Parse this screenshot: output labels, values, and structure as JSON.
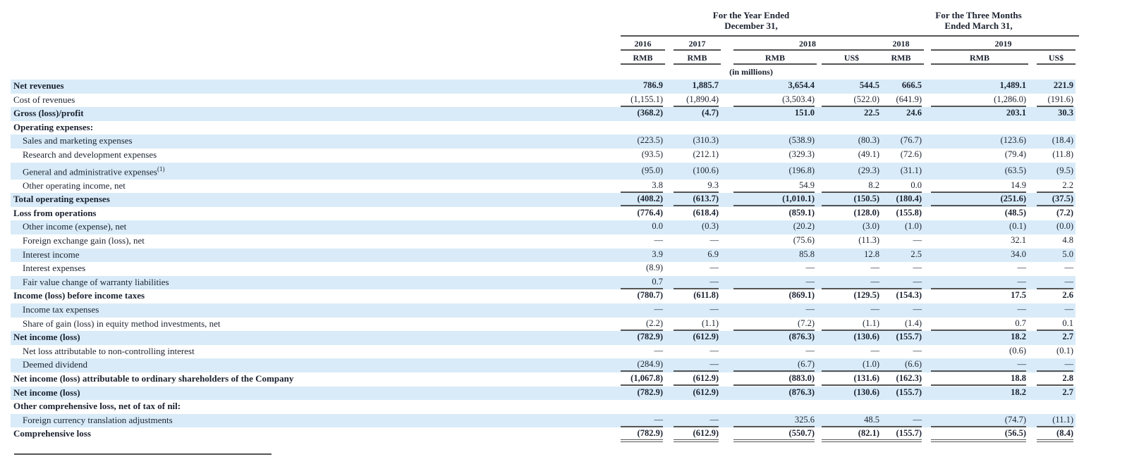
{
  "header": {
    "group1": [
      "For the Year Ended",
      "December 31,"
    ],
    "group2": [
      "For the Three Months",
      "Ended March 31,"
    ],
    "years": [
      "2016",
      "2017",
      "2018",
      "2018",
      "2019"
    ],
    "currencies": [
      "RMB",
      "RMB",
      "RMB",
      "US$",
      "RMB",
      "RMB",
      "US$"
    ],
    "units": "(in millions)"
  },
  "rows": [
    {
      "label": "Net revenues",
      "bold": true,
      "indent": false,
      "shade": true,
      "rule": "",
      "values": [
        "786.9",
        "1,885.7",
        "3,654.4",
        "544.5",
        "666.5",
        "1,489.1",
        "221.9"
      ]
    },
    {
      "label": "Cost of revenues",
      "bold": false,
      "indent": false,
      "shade": false,
      "rule": "single",
      "values": [
        "(1,155.1)",
        "(1,890.4)",
        "(3,503.4)",
        "(522.0)",
        "(641.9)",
        "(1,286.0)",
        "(191.6)"
      ]
    },
    {
      "label": "Gross (loss)/profit",
      "bold": true,
      "indent": false,
      "shade": true,
      "rule": "",
      "values": [
        "(368.2)",
        "(4.7)",
        "151.0",
        "22.5",
        "24.6",
        "203.1",
        "30.3"
      ]
    },
    {
      "label": "Operating expenses:",
      "bold": true,
      "indent": false,
      "shade": false,
      "rule": "",
      "values": [
        "",
        "",
        "",
        "",
        "",
        "",
        ""
      ]
    },
    {
      "label": "Sales and marketing expenses",
      "bold": false,
      "indent": true,
      "shade": true,
      "rule": "",
      "values": [
        "(223.5)",
        "(310.3)",
        "(538.9)",
        "(80.3)",
        "(76.7)",
        "(123.6)",
        "(18.4)"
      ]
    },
    {
      "label": "Research and development expenses",
      "bold": false,
      "indent": true,
      "shade": false,
      "rule": "",
      "values": [
        "(93.5)",
        "(212.1)",
        "(329.3)",
        "(49.1)",
        "(72.6)",
        "(79.4)",
        "(11.8)"
      ]
    },
    {
      "label": "General and administrative expenses",
      "sup": "(1)",
      "bold": false,
      "indent": true,
      "shade": true,
      "tall": true,
      "rule": "",
      "values": [
        "(95.0)",
        "(100.6)",
        "(196.8)",
        "(29.3)",
        "(31.1)",
        "(63.5)",
        "(9.5)"
      ]
    },
    {
      "label": "Other operating income, net",
      "bold": false,
      "indent": true,
      "shade": false,
      "rule": "single",
      "values": [
        "3.8",
        "9.3",
        "54.9",
        "8.2",
        "0.0",
        "14.9",
        "2.2"
      ]
    },
    {
      "label": "Total operating expenses",
      "bold": true,
      "indent": false,
      "shade": true,
      "rule": "single",
      "values": [
        "(408.2)",
        "(613.7)",
        "(1,010.1)",
        "(150.5)",
        "(180.4)",
        "(251.6)",
        "(37.5)"
      ]
    },
    {
      "label": "Loss from operations",
      "bold": true,
      "indent": false,
      "shade": false,
      "rule": "",
      "values": [
        "(776.4)",
        "(618.4)",
        "(859.1)",
        "(128.0)",
        "(155.8)",
        "(48.5)",
        "(7.2)"
      ]
    },
    {
      "label": "Other income (expense), net",
      "bold": false,
      "indent": true,
      "shade": true,
      "rule": "",
      "values": [
        "0.0",
        "(0.3)",
        "(20.2)",
        "(3.0)",
        "(1.0)",
        "(0.1)",
        "(0.0)"
      ]
    },
    {
      "label": "Foreign exchange gain (loss), net",
      "bold": false,
      "indent": true,
      "shade": false,
      "rule": "",
      "values": [
        "—",
        "—",
        "(75.6)",
        "(11.3)",
        "—",
        "32.1",
        "4.8"
      ]
    },
    {
      "label": "Interest income",
      "bold": false,
      "indent": true,
      "shade": true,
      "rule": "",
      "values": [
        "3.9",
        "6.9",
        "85.8",
        "12.8",
        "2.5",
        "34.0",
        "5.0"
      ]
    },
    {
      "label": "Interest expenses",
      "bold": false,
      "indent": true,
      "shade": false,
      "rule": "",
      "values": [
        "(8.9)",
        "—",
        "—",
        "—",
        "—",
        "—",
        "—"
      ]
    },
    {
      "label": "Fair value change of warranty liabilities",
      "bold": false,
      "indent": true,
      "shade": true,
      "rule": "single",
      "values": [
        "0.7",
        "—",
        "—",
        "—",
        "—",
        "—",
        "—"
      ]
    },
    {
      "label": "Income (loss) before income taxes",
      "bold": true,
      "indent": false,
      "shade": false,
      "rule": "",
      "values": [
        "(780.7)",
        "(611.8)",
        "(869.1)",
        "(129.5)",
        "(154.3)",
        "17.5",
        "2.6"
      ]
    },
    {
      "label": "Income tax expenses",
      "bold": false,
      "indent": true,
      "shade": true,
      "rule": "",
      "values": [
        "—",
        "—",
        "—",
        "—",
        "—",
        "—",
        "—"
      ]
    },
    {
      "label": "Share of gain (loss) in equity method investments, net",
      "bold": false,
      "indent": true,
      "shade": false,
      "rule": "single",
      "values": [
        "(2.2)",
        "(1.1)",
        "(7.2)",
        "(1.1)",
        "(1.4)",
        "0.7",
        "0.1"
      ]
    },
    {
      "label": "Net income (loss)",
      "bold": true,
      "indent": false,
      "shade": true,
      "rule": "",
      "values": [
        "(782.9)",
        "(612.9)",
        "(876.3)",
        "(130.6)",
        "(155.7)",
        "18.2",
        "2.7"
      ]
    },
    {
      "label": "Net loss attributable to non-controlling interest",
      "bold": false,
      "indent": true,
      "shade": false,
      "rule": "",
      "values": [
        "—",
        "—",
        "—",
        "—",
        "—",
        "(0.6)",
        "(0.1)"
      ]
    },
    {
      "label": "Deemed dividend",
      "bold": false,
      "indent": true,
      "shade": true,
      "rule": "single",
      "values": [
        "(284.9)",
        "—",
        "(6.7)",
        "(1.0)",
        "(6.6)",
        "—",
        "—"
      ]
    },
    {
      "label": "Net income (loss) attributable to ordinary shareholders of the Company",
      "bold": true,
      "indent": false,
      "shade": false,
      "rule": "single",
      "values": [
        "(1,067.8)",
        "(612.9)",
        "(883.0)",
        "(131.6)",
        "(162.3)",
        "18.8",
        "2.8"
      ]
    },
    {
      "label": "Net income (loss)",
      "bold": true,
      "indent": false,
      "shade": true,
      "rule": "",
      "values": [
        "(782.9)",
        "(612.9)",
        "(876.3)",
        "(130.6)",
        "(155.7)",
        "18.2",
        "2.7"
      ]
    },
    {
      "label": "Other comprehensive loss, net of tax of nil:",
      "bold": true,
      "indent": false,
      "shade": false,
      "rule": "",
      "values": [
        "",
        "",
        "",
        "",
        "",
        "",
        ""
      ]
    },
    {
      "label": "Foreign currency translation adjustments",
      "bold": false,
      "indent": true,
      "shade": true,
      "rule": "single",
      "values": [
        "—",
        "—",
        "325.6",
        "48.5",
        "—",
        "(74.7)",
        "(11.1)"
      ]
    },
    {
      "label": "Comprehensive loss",
      "bold": true,
      "indent": false,
      "shade": false,
      "rule": "double",
      "values": [
        "(782.9)",
        "(612.9)",
        "(550.7)",
        "(82.1)",
        "(155.7)",
        "(56.5)",
        "(8.4)"
      ]
    }
  ]
}
